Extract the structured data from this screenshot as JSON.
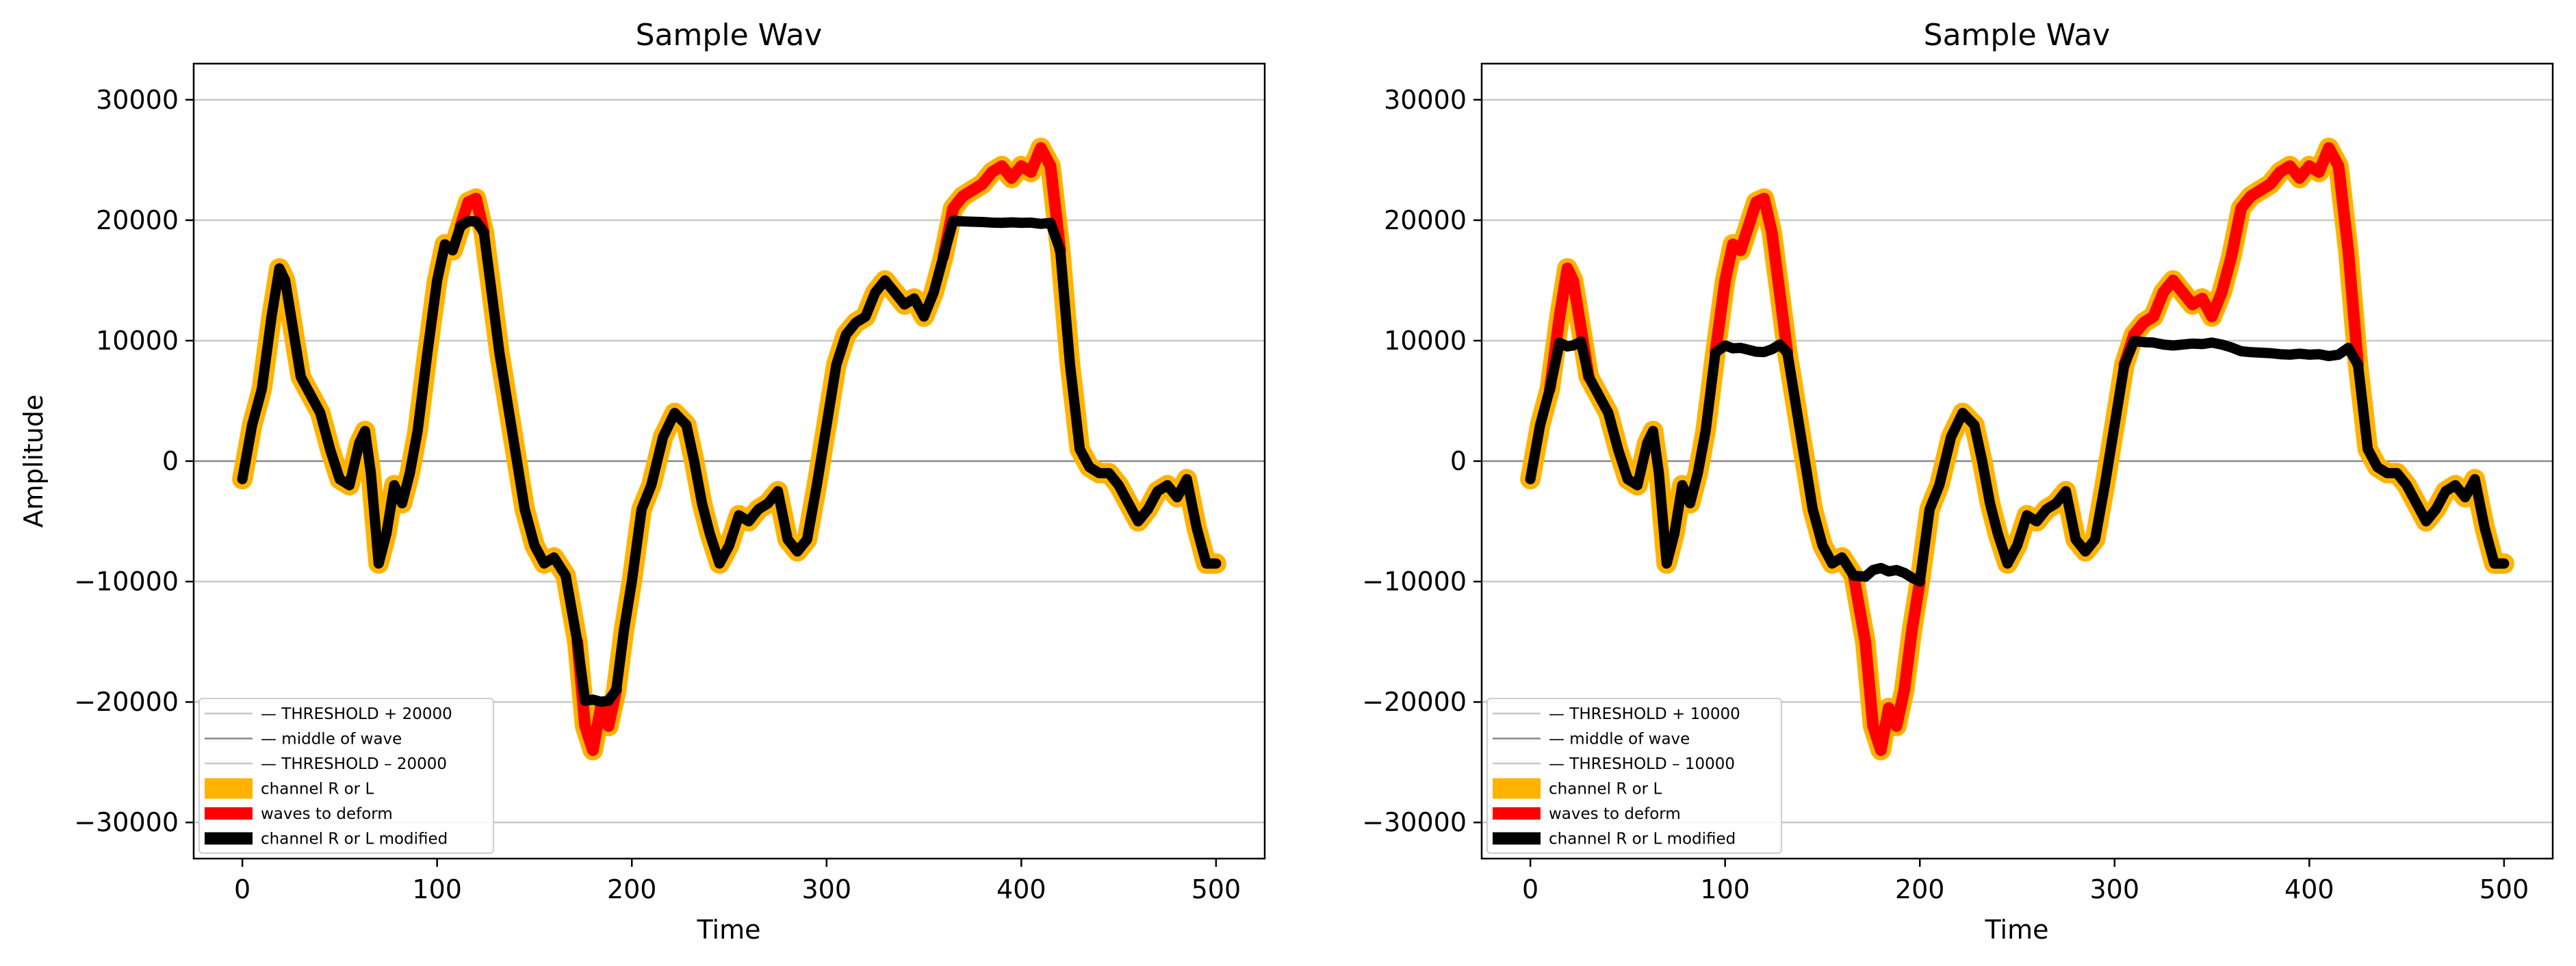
{
  "chart_data": [
    {
      "type": "line",
      "title": "Sample Wav",
      "xlabel": "Time",
      "ylabel": "Amplitude",
      "xlim": [
        -25,
        525
      ],
      "ylim": [
        -33000,
        33000
      ],
      "xticks": [
        0,
        100,
        200,
        300,
        400,
        500
      ],
      "xtick_labels": [
        "0",
        "100",
        "200",
        "300",
        "400",
        "500"
      ],
      "yticks": [
        -30000,
        -20000,
        -10000,
        0,
        10000,
        20000,
        30000
      ],
      "ytick_labels": [
        "−30000",
        "−20000",
        "−10000",
        "0",
        "10000",
        "20000",
        "30000"
      ],
      "grid": "y",
      "legend_position": "lower-left",
      "threshold": 20000,
      "hlines": [
        {
          "y": 20000,
          "color": "#c8c8c8"
        },
        {
          "y": -20000,
          "color": "#c8c8c8"
        },
        {
          "y": 30000,
          "color": "#c8c8c8"
        },
        {
          "y": -30000,
          "color": "#c8c8c8"
        },
        {
          "y": 10000,
          "color": "#c8c8c8"
        },
        {
          "y": -10000,
          "color": "#c8c8c8"
        },
        {
          "y": 0,
          "color": "#888888"
        }
      ],
      "series": [
        {
          "name": "channel    R or L",
          "color": "#ffb300"
        },
        {
          "name": "waves to deform",
          "color": "#ff0000"
        },
        {
          "name": "channel    R or L  modified",
          "color": "#000000"
        }
      ],
      "legend": [
        {
          "label": "— THRESHOLD  + 20000",
          "color": "#c8c8c8",
          "kind": "thin"
        },
        {
          "label": "— middle of wave",
          "color": "#888888",
          "kind": "thin"
        },
        {
          "label": "— THRESHOLD   – 20000",
          "color": "#c8c8c8",
          "kind": "thin"
        },
        {
          "label": "channel    R or L",
          "color": "#ffb300",
          "kind": "thick"
        },
        {
          "label": "waves to deform",
          "color": "#ff0000",
          "kind": "medium"
        },
        {
          "label": "channel    R or L  modified",
          "color": "#000000",
          "kind": "medium"
        }
      ]
    },
    {
      "type": "line",
      "title": "Sample Wav",
      "xlabel": "Time",
      "ylabel": "",
      "xlim": [
        -25,
        525
      ],
      "ylim": [
        -33000,
        33000
      ],
      "xticks": [
        0,
        100,
        200,
        300,
        400,
        500
      ],
      "xtick_labels": [
        "0",
        "100",
        "200",
        "300",
        "400",
        "500"
      ],
      "yticks": [
        -30000,
        -20000,
        -10000,
        0,
        10000,
        20000,
        30000
      ],
      "ytick_labels": [
        "−30000",
        "−20000",
        "−10000",
        "0",
        "10000",
        "20000",
        "30000"
      ],
      "grid": "y",
      "legend_position": "lower-left",
      "threshold": 10000,
      "hlines": [
        {
          "y": 20000,
          "color": "#c8c8c8"
        },
        {
          "y": -20000,
          "color": "#c8c8c8"
        },
        {
          "y": 30000,
          "color": "#c8c8c8"
        },
        {
          "y": -30000,
          "color": "#c8c8c8"
        },
        {
          "y": 10000,
          "color": "#c8c8c8"
        },
        {
          "y": -10000,
          "color": "#c8c8c8"
        },
        {
          "y": 0,
          "color": "#888888"
        }
      ],
      "series": [
        {
          "name": "channel    R or L",
          "color": "#ffb300"
        },
        {
          "name": "waves to deform",
          "color": "#ff0000"
        },
        {
          "name": "channel    R or L  modified",
          "color": "#000000"
        }
      ],
      "legend": [
        {
          "label": "— THRESHOLD  + 10000",
          "color": "#c8c8c8",
          "kind": "thin"
        },
        {
          "label": "— middle of wave",
          "color": "#888888",
          "kind": "thin"
        },
        {
          "label": "— THRESHOLD   – 10000",
          "color": "#c8c8c8",
          "kind": "thin"
        },
        {
          "label": "channel    R or L",
          "color": "#ffb300",
          "kind": "thick"
        },
        {
          "label": "waves to deform",
          "color": "#ff0000",
          "kind": "medium"
        },
        {
          "label": "channel    R or L  modified",
          "color": "#000000",
          "kind": "medium"
        }
      ]
    }
  ],
  "wave": {
    "x": [
      0,
      5,
      10,
      15,
      19,
      22,
      26,
      30,
      35,
      40,
      45,
      50,
      55,
      60,
      63,
      66,
      70,
      74,
      78,
      82,
      86,
      90,
      95,
      100,
      104,
      108,
      112,
      116,
      120,
      124,
      128,
      132,
      136,
      140,
      145,
      150,
      155,
      160,
      166,
      172,
      176,
      180,
      184,
      188,
      192,
      196,
      200,
      205,
      210,
      216,
      222,
      228,
      232,
      236,
      240,
      245,
      250,
      255,
      260,
      265,
      270,
      275,
      280,
      285,
      290,
      295,
      300,
      305,
      310,
      315,
      320,
      325,
      330,
      335,
      340,
      345,
      350,
      355,
      360,
      365,
      370,
      375,
      380,
      385,
      390,
      395,
      400,
      405,
      410,
      415,
      420,
      425,
      430,
      435,
      440,
      445,
      450,
      455,
      460,
      465,
      470,
      475,
      480,
      485,
      490,
      495,
      500
    ],
    "y": [
      -1500,
      3000,
      6000,
      12000,
      16000,
      15000,
      11000,
      7000,
      5500,
      4000,
      1000,
      -1500,
      -2000,
      1500,
      2500,
      -1000,
      -8500,
      -6000,
      -2000,
      -3500,
      -1000,
      2500,
      9000,
      15000,
      18000,
      17500,
      19500,
      21500,
      21800,
      19000,
      14000,
      9000,
      5000,
      1000,
      -4000,
      -7000,
      -8500,
      -8000,
      -9500,
      -15000,
      -22000,
      -24000,
      -20500,
      -22000,
      -19000,
      -14000,
      -10000,
      -4000,
      -2000,
      2000,
      4000,
      3000,
      0,
      -3500,
      -6000,
      -8500,
      -7000,
      -4500,
      -5000,
      -4000,
      -3500,
      -2500,
      -6500,
      -7500,
      -6500,
      -2000,
      3000,
      8000,
      10500,
      11500,
      12000,
      14000,
      15000,
      14000,
      13000,
      13500,
      12000,
      14000,
      17000,
      21000,
      22000,
      22500,
      23000,
      24000,
      24500,
      23500,
      24500,
      24000,
      26000,
      24500,
      17500,
      8000,
      1000,
      -500,
      -1000,
      -1000,
      -2000,
      -3500,
      -5000,
      -4000,
      -2500,
      -2000,
      -3000,
      -1500,
      -5500,
      -8500,
      -8500
    ]
  },
  "style": {
    "grid_color": "#c8c8c8",
    "middle_color": "#888888",
    "orange": "#ffb300",
    "red": "#ff0000",
    "black": "#000000"
  }
}
